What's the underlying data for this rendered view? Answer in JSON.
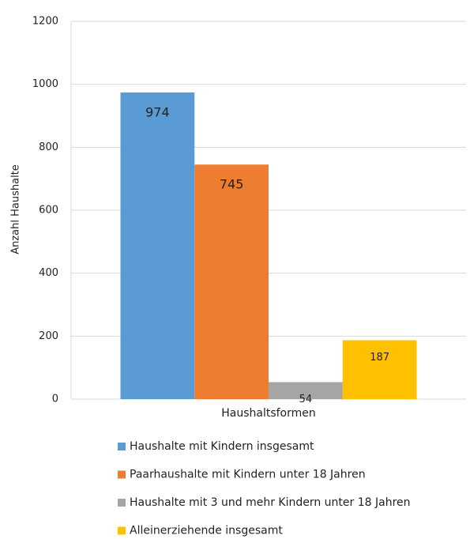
{
  "chart_data": {
    "type": "bar",
    "y_label": "Anzahl Haushalte",
    "categories": [
      "Haushaltsformen"
    ],
    "series": [
      {
        "name": "Haushalte mit Kindern insgesamt",
        "color": "#5b9bd5",
        "values": [
          974
        ]
      },
      {
        "name": "Paarhaushalte mit Kindern unter 18 Jahren",
        "color": "#ed7d31",
        "values": [
          745
        ]
      },
      {
        "name": "Haushalte mit 3 und mehr Kindern unter 18 Jahren",
        "color": "#a5a5a5",
        "values": [
          54
        ]
      },
      {
        "name": "Alleinerziehende insgesamt",
        "color": "#ffc000",
        "values": [
          187
        ]
      }
    ],
    "ylim": [
      0,
      1200
    ],
    "yticks": [
      0,
      200,
      400,
      600,
      800,
      1000,
      1200
    ],
    "grid": true,
    "legend": "bottom"
  }
}
